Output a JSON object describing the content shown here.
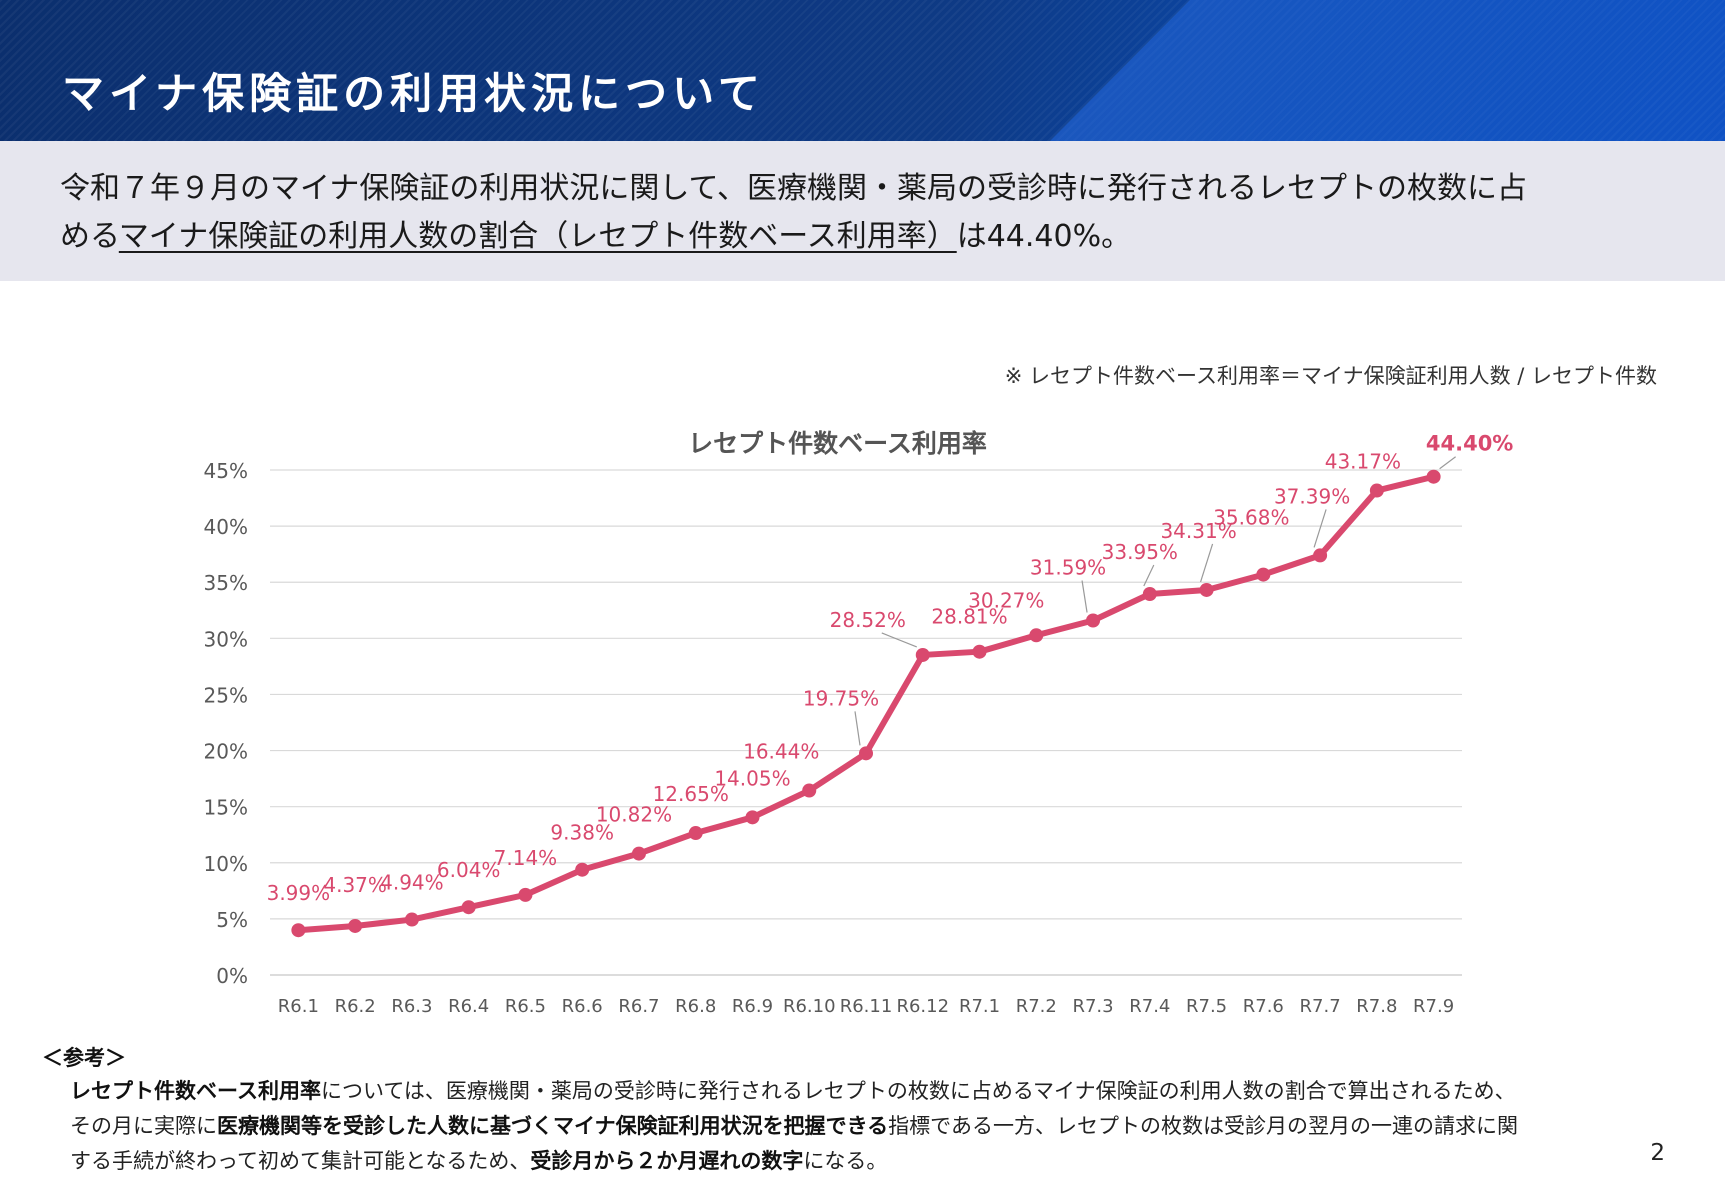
{
  "header": {
    "title": "マイナ保険証の利用状況について"
  },
  "summary": {
    "line1": "令和７年９月のマイナ保険証の利用状況に関して、医療機関・薬局の受診時に発行されるレセプトの枚数に占",
    "line2_pre": "める",
    "line2_underlined": "マイナ保険証の利用人数の割合（レセプト件数ベース利用率）",
    "line2_post": "は44.40%。"
  },
  "formula_note": "※ レセプト件数ベース利用率＝マイナ保険証利用人数 / レセプト件数",
  "chart_data": {
    "type": "line",
    "title": "レセプト件数ベース利用率",
    "categories": [
      "R6.1",
      "R6.2",
      "R6.3",
      "R6.4",
      "R6.5",
      "R6.6",
      "R6.7",
      "R6.8",
      "R6.9",
      "R6.10",
      "R6.11",
      "R6.12",
      "R7.1",
      "R7.2",
      "R7.3",
      "R7.4",
      "R7.5",
      "R7.6",
      "R7.7",
      "R7.8",
      "R7.9"
    ],
    "values": [
      3.99,
      4.37,
      4.94,
      6.04,
      7.14,
      9.38,
      10.82,
      12.65,
      14.05,
      16.44,
      19.75,
      28.52,
      28.81,
      30.27,
      31.59,
      33.95,
      34.31,
      35.68,
      37.39,
      43.17,
      44.4
    ],
    "labels": [
      "3.99%",
      "4.37%",
      "4.94%",
      "6.04%",
      "7.14%",
      "9.38%",
      "10.82%",
      "12.65%",
      "14.05%",
      "16.44%",
      "19.75%",
      "28.52%",
      "28.81%",
      "30.27%",
      "31.59%",
      "33.95%",
      "34.31%",
      "35.68%",
      "37.39%",
      "43.17%",
      "44.40%"
    ],
    "highlight_last": true,
    "yticks": [
      "0%",
      "5%",
      "10%",
      "15%",
      "20%",
      "25%",
      "30%",
      "35%",
      "40%",
      "45%"
    ],
    "ylim": [
      0,
      45
    ],
    "grid": true,
    "line_color": "#d9496e",
    "label_color": "#d9496e"
  },
  "reference": {
    "heading": "＜参考＞",
    "p1_bold": "レセプト件数ベース利用率",
    "p1_text": "については、医療機関・薬局の受診時に発行されるレセプトの枚数に占めるマイナ保険証の利用人数の割合で算出されるため、",
    "p2_text": "その月に実際に",
    "p2_bold": "医療機関等を受診した人数に基づくマイナ保険証利用状況を把握できる",
    "p2_text2": "指標である一方、レセプトの枚数は受診月の翌月の一連の請求に関",
    "p3_text": "する手続が終わって初めて集計可能となるため、",
    "p3_bold": "受診月から２か月遅れの数字",
    "p3_text2": "になる。"
  },
  "page_number": "2"
}
